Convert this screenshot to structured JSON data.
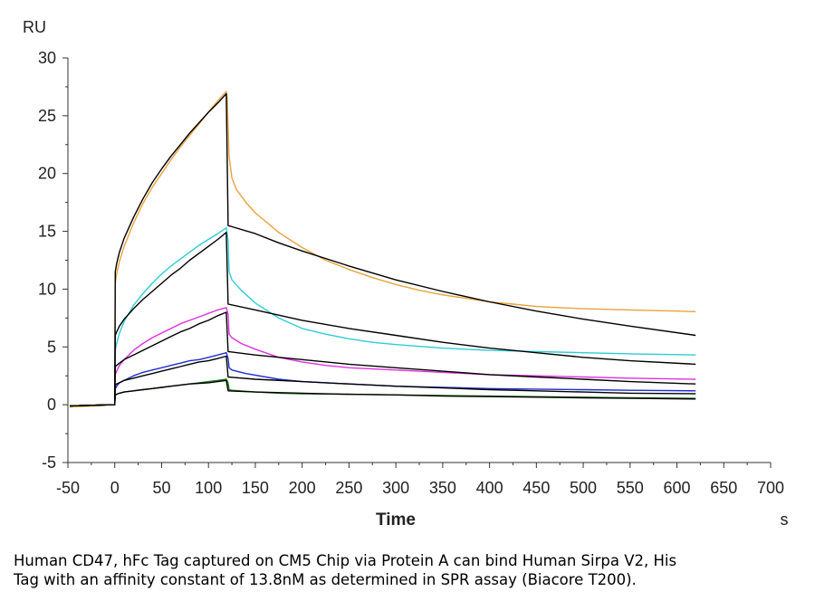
{
  "chart_data": {
    "type": "line",
    "ylabel": "RU",
    "xlabel": "Time",
    "xunit": "s",
    "xlim": [
      -50,
      700
    ],
    "ylim": [
      -5,
      30
    ],
    "xticks": [
      -50,
      0,
      50,
      100,
      150,
      200,
      250,
      300,
      350,
      400,
      450,
      500,
      550,
      600,
      650,
      700
    ],
    "yticks": [
      -5,
      0,
      5,
      10,
      15,
      20,
      25,
      30
    ],
    "grid": false,
    "legend": "none",
    "injection_end_s": 120,
    "series": [
      {
        "role": "measured",
        "color": "#E8A33A",
        "values": [
          [
            -48,
            -0.2
          ],
          [
            -20,
            -0.1
          ],
          [
            0,
            0
          ],
          [
            0.5,
            10.5
          ],
          [
            2,
            11.3
          ],
          [
            5,
            12.4
          ],
          [
            10,
            13.7
          ],
          [
            20,
            15.7
          ],
          [
            30,
            17.4
          ],
          [
            40,
            18.8
          ],
          [
            50,
            20.0
          ],
          [
            60,
            21.2
          ],
          [
            70,
            22.3
          ],
          [
            80,
            23.3
          ],
          [
            90,
            24.3
          ],
          [
            100,
            25.3
          ],
          [
            110,
            26.3
          ],
          [
            119,
            27.1
          ],
          [
            120,
            26.5
          ],
          [
            122,
            21.5
          ],
          [
            125,
            19.6
          ],
          [
            130,
            18.6
          ],
          [
            140,
            17.5
          ],
          [
            150,
            16.6
          ],
          [
            175,
            14.9
          ],
          [
            200,
            13.6
          ],
          [
            225,
            12.5
          ],
          [
            250,
            11.7
          ],
          [
            275,
            11.0
          ],
          [
            300,
            10.4
          ],
          [
            325,
            9.9
          ],
          [
            350,
            9.5
          ],
          [
            375,
            9.2
          ],
          [
            400,
            8.9
          ],
          [
            425,
            8.7
          ],
          [
            450,
            8.5
          ],
          [
            475,
            8.4
          ],
          [
            500,
            8.3
          ],
          [
            550,
            8.2
          ],
          [
            600,
            8.1
          ],
          [
            620,
            8.05
          ]
        ]
      },
      {
        "role": "measured",
        "color": "#2ECCD6",
        "values": [
          [
            -48,
            -0.1
          ],
          [
            0,
            0
          ],
          [
            0.5,
            4.7
          ],
          [
            2,
            5.3
          ],
          [
            5,
            6.2
          ],
          [
            10,
            7.2
          ],
          [
            20,
            8.6
          ],
          [
            30,
            9.6
          ],
          [
            40,
            10.5
          ],
          [
            50,
            11.3
          ],
          [
            60,
            12.0
          ],
          [
            70,
            12.6
          ],
          [
            80,
            13.2
          ],
          [
            90,
            13.8
          ],
          [
            100,
            14.3
          ],
          [
            110,
            14.8
          ],
          [
            119,
            15.3
          ],
          [
            121,
            14.2
          ],
          [
            122,
            11.5
          ],
          [
            125,
            10.8
          ],
          [
            135,
            9.9
          ],
          [
            150,
            8.8
          ],
          [
            175,
            7.5
          ],
          [
            200,
            6.6
          ],
          [
            225,
            6.1
          ],
          [
            250,
            5.7
          ],
          [
            275,
            5.4
          ],
          [
            300,
            5.2
          ],
          [
            350,
            4.9
          ],
          [
            400,
            4.7
          ],
          [
            450,
            4.6
          ],
          [
            500,
            4.5
          ],
          [
            550,
            4.4
          ],
          [
            620,
            4.3
          ]
        ]
      },
      {
        "role": "measured",
        "color": "#E030E0",
        "values": [
          [
            -48,
            -0.1
          ],
          [
            0,
            0
          ],
          [
            0.5,
            2.6
          ],
          [
            2,
            2.9
          ],
          [
            5,
            3.4
          ],
          [
            10,
            3.9
          ],
          [
            20,
            4.7
          ],
          [
            30,
            5.3
          ],
          [
            40,
            5.8
          ],
          [
            50,
            6.2
          ],
          [
            60,
            6.6
          ],
          [
            70,
            7.0
          ],
          [
            80,
            7.3
          ],
          [
            90,
            7.6
          ],
          [
            100,
            7.9
          ],
          [
            110,
            8.2
          ],
          [
            119,
            8.4
          ],
          [
            121,
            7.8
          ],
          [
            122,
            6.1
          ],
          [
            125,
            5.8
          ],
          [
            135,
            5.3
          ],
          [
            150,
            4.8
          ],
          [
            175,
            4.1
          ],
          [
            200,
            3.7
          ],
          [
            225,
            3.4
          ],
          [
            250,
            3.2
          ],
          [
            300,
            3.0
          ],
          [
            350,
            2.8
          ],
          [
            400,
            2.6
          ],
          [
            450,
            2.5
          ],
          [
            500,
            2.4
          ],
          [
            550,
            2.3
          ],
          [
            620,
            2.2
          ]
        ]
      },
      {
        "role": "measured",
        "color": "#1E2ED0",
        "values": [
          [
            -48,
            -0.1
          ],
          [
            0,
            0
          ],
          [
            0.5,
            1.4
          ],
          [
            2,
            1.6
          ],
          [
            5,
            1.9
          ],
          [
            10,
            2.1
          ],
          [
            20,
            2.5
          ],
          [
            30,
            2.8
          ],
          [
            40,
            3.0
          ],
          [
            50,
            3.2
          ],
          [
            60,
            3.4
          ],
          [
            70,
            3.6
          ],
          [
            80,
            3.8
          ],
          [
            90,
            3.9
          ],
          [
            100,
            4.1
          ],
          [
            110,
            4.3
          ],
          [
            119,
            4.5
          ],
          [
            121,
            4.0
          ],
          [
            122,
            3.2
          ],
          [
            125,
            3.0
          ],
          [
            140,
            2.7
          ],
          [
            175,
            2.2
          ],
          [
            200,
            2.0
          ],
          [
            250,
            1.8
          ],
          [
            300,
            1.6
          ],
          [
            350,
            1.5
          ],
          [
            400,
            1.4
          ],
          [
            450,
            1.35
          ],
          [
            500,
            1.3
          ],
          [
            550,
            1.25
          ],
          [
            620,
            1.2
          ]
        ]
      },
      {
        "role": "measured",
        "color": "#1E7A1E",
        "values": [
          [
            -48,
            -0.1
          ],
          [
            0,
            0
          ],
          [
            0.5,
            0.8
          ],
          [
            2,
            0.9
          ],
          [
            5,
            1.0
          ],
          [
            10,
            1.1
          ],
          [
            20,
            1.2
          ],
          [
            30,
            1.3
          ],
          [
            40,
            1.4
          ],
          [
            50,
            1.5
          ],
          [
            60,
            1.6
          ],
          [
            70,
            1.7
          ],
          [
            80,
            1.8
          ],
          [
            90,
            1.9
          ],
          [
            100,
            2.0
          ],
          [
            110,
            2.1
          ],
          [
            119,
            2.2
          ],
          [
            121,
            1.9
          ],
          [
            122,
            1.3
          ],
          [
            125,
            1.25
          ],
          [
            150,
            1.1
          ],
          [
            175,
            1.0
          ],
          [
            200,
            0.95
          ],
          [
            250,
            0.9
          ],
          [
            300,
            0.85
          ],
          [
            350,
            0.8
          ],
          [
            400,
            0.75
          ],
          [
            450,
            0.7
          ],
          [
            500,
            0.65
          ],
          [
            550,
            0.6
          ],
          [
            620,
            0.55
          ]
        ]
      },
      {
        "role": "fit",
        "color": "#000000",
        "values": [
          [
            -48,
            -0.1
          ],
          [
            0,
            0
          ],
          [
            0.5,
            11.5
          ],
          [
            2,
            12.2
          ],
          [
            5,
            13.2
          ],
          [
            10,
            14.4
          ],
          [
            20,
            16.2
          ],
          [
            30,
            17.8
          ],
          [
            40,
            19.2
          ],
          [
            50,
            20.4
          ],
          [
            60,
            21.5
          ],
          [
            70,
            22.5
          ],
          [
            80,
            23.5
          ],
          [
            90,
            24.4
          ],
          [
            100,
            25.3
          ],
          [
            110,
            26.1
          ],
          [
            119,
            26.9
          ],
          [
            121,
            15.5
          ],
          [
            150,
            14.8
          ],
          [
            175,
            14.0
          ],
          [
            200,
            13.3
          ],
          [
            250,
            12.0
          ],
          [
            300,
            10.8
          ],
          [
            350,
            9.8
          ],
          [
            400,
            8.9
          ],
          [
            450,
            8.1
          ],
          [
            500,
            7.4
          ],
          [
            550,
            6.8
          ],
          [
            620,
            6.0
          ]
        ]
      },
      {
        "role": "fit",
        "color": "#000000",
        "values": [
          [
            -48,
            -0.1
          ],
          [
            0,
            0
          ],
          [
            0.5,
            6.0
          ],
          [
            2,
            6.3
          ],
          [
            5,
            6.8
          ],
          [
            10,
            7.4
          ],
          [
            20,
            8.3
          ],
          [
            30,
            9.1
          ],
          [
            40,
            9.8
          ],
          [
            50,
            10.5
          ],
          [
            60,
            11.2
          ],
          [
            70,
            11.8
          ],
          [
            80,
            12.5
          ],
          [
            90,
            13.1
          ],
          [
            100,
            13.7
          ],
          [
            110,
            14.3
          ],
          [
            119,
            14.9
          ],
          [
            121,
            8.7
          ],
          [
            150,
            8.2
          ],
          [
            200,
            7.3
          ],
          [
            250,
            6.6
          ],
          [
            300,
            6.0
          ],
          [
            350,
            5.4
          ],
          [
            400,
            4.9
          ],
          [
            450,
            4.5
          ],
          [
            500,
            4.1
          ],
          [
            550,
            3.8
          ],
          [
            620,
            3.5
          ]
        ]
      },
      {
        "role": "fit",
        "color": "#000000",
        "values": [
          [
            -48,
            -0.1
          ],
          [
            0,
            0
          ],
          [
            0.5,
            3.3
          ],
          [
            2,
            3.4
          ],
          [
            5,
            3.6
          ],
          [
            10,
            3.9
          ],
          [
            20,
            4.3
          ],
          [
            30,
            4.7
          ],
          [
            40,
            5.1
          ],
          [
            50,
            5.5
          ],
          [
            60,
            5.9
          ],
          [
            70,
            6.3
          ],
          [
            80,
            6.6
          ],
          [
            90,
            7.0
          ],
          [
            100,
            7.3
          ],
          [
            110,
            7.7
          ],
          [
            119,
            8.0
          ],
          [
            121,
            4.6
          ],
          [
            150,
            4.3
          ],
          [
            200,
            3.9
          ],
          [
            250,
            3.5
          ],
          [
            300,
            3.2
          ],
          [
            350,
            2.9
          ],
          [
            400,
            2.6
          ],
          [
            450,
            2.4
          ],
          [
            500,
            2.2
          ],
          [
            550,
            2.0
          ],
          [
            620,
            1.8
          ]
        ]
      },
      {
        "role": "fit",
        "color": "#000000",
        "values": [
          [
            -48,
            -0.1
          ],
          [
            0,
            0
          ],
          [
            0.5,
            1.7
          ],
          [
            2,
            1.8
          ],
          [
            5,
            1.9
          ],
          [
            10,
            2.1
          ],
          [
            20,
            2.3
          ],
          [
            30,
            2.5
          ],
          [
            40,
            2.7
          ],
          [
            50,
            2.9
          ],
          [
            60,
            3.1
          ],
          [
            70,
            3.3
          ],
          [
            80,
            3.5
          ],
          [
            90,
            3.7
          ],
          [
            100,
            3.8
          ],
          [
            110,
            4.0
          ],
          [
            119,
            4.2
          ],
          [
            121,
            2.4
          ],
          [
            150,
            2.2
          ],
          [
            200,
            2.0
          ],
          [
            250,
            1.8
          ],
          [
            300,
            1.6
          ],
          [
            350,
            1.45
          ],
          [
            400,
            1.3
          ],
          [
            450,
            1.2
          ],
          [
            500,
            1.1
          ],
          [
            550,
            1.0
          ],
          [
            620,
            0.95
          ]
        ]
      },
      {
        "role": "fit",
        "color": "#000000",
        "values": [
          [
            -48,
            -0.1
          ],
          [
            0,
            0
          ],
          [
            0.5,
            0.85
          ],
          [
            2,
            0.9
          ],
          [
            5,
            1.0
          ],
          [
            10,
            1.1
          ],
          [
            20,
            1.2
          ],
          [
            30,
            1.3
          ],
          [
            40,
            1.4
          ],
          [
            50,
            1.5
          ],
          [
            60,
            1.6
          ],
          [
            70,
            1.7
          ],
          [
            80,
            1.8
          ],
          [
            90,
            1.85
          ],
          [
            100,
            1.9
          ],
          [
            110,
            2.0
          ],
          [
            119,
            2.1
          ],
          [
            121,
            1.2
          ],
          [
            150,
            1.1
          ],
          [
            200,
            1.0
          ],
          [
            250,
            0.9
          ],
          [
            300,
            0.85
          ],
          [
            350,
            0.75
          ],
          [
            400,
            0.7
          ],
          [
            450,
            0.65
          ],
          [
            500,
            0.6
          ],
          [
            550,
            0.55
          ],
          [
            620,
            0.5
          ]
        ]
      }
    ]
  },
  "caption": {
    "line1": "Human CD47, hFc Tag captured on CM5 Chip via Protein A can bind Human Sirpa V2, His",
    "line2": "Tag with an affinity constant of 13.8nM as determined in SPR assay (Biacore T200)."
  },
  "colors": {
    "axis": "#333333",
    "background": "#ffffff"
  }
}
